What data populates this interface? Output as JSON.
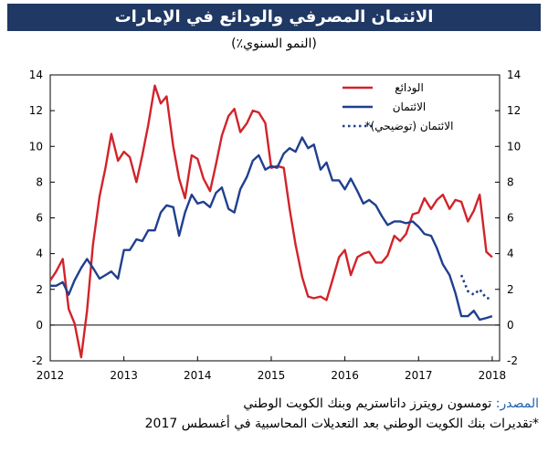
{
  "header": {
    "title": "الائتمان المصرفي والودائع في الإمارات",
    "subtitle": "(النمو السنوي٪)"
  },
  "footer": {
    "source_label": "المصدر:",
    "source_text": " تومسون رويترز داتاستريم وبنك الكويت الوطني",
    "note": "*تقديرات بنك الكويت الوطني بعد التعديلات المحاسبية في أغسطس 2017"
  },
  "colors": {
    "deposits": "#d2232a",
    "credit": "#203f8f",
    "axis": "#000000",
    "header_bg": "#1f3864"
  },
  "chart_data": {
    "type": "line",
    "title": "الائتمان المصرفي والودائع في الإمارات",
    "ylabel": "(النمو السنوي٪)",
    "xlim": [
      2012,
      2018.1
    ],
    "ylim": [
      -2,
      14
    ],
    "x_ticks": [
      "2012",
      "2013",
      "2014",
      "2015",
      "2016",
      "2017",
      "2018"
    ],
    "y_ticks": [
      "-2",
      "0",
      "2",
      "4",
      "6",
      "8",
      "10",
      "12",
      "14"
    ],
    "legend_position": "top-right",
    "series": [
      {
        "name": "الودائع",
        "style": "solid",
        "color": "#d2232a",
        "x": [
          2012.0,
          2012.08,
          2012.17,
          2012.25,
          2012.33,
          2012.42,
          2012.5,
          2012.58,
          2012.67,
          2012.75,
          2012.83,
          2012.92,
          2013.0,
          2013.08,
          2013.17,
          2013.25,
          2013.33,
          2013.42,
          2013.5,
          2013.58,
          2013.67,
          2013.75,
          2013.83,
          2013.92,
          2014.0,
          2014.08,
          2014.17,
          2014.25,
          2014.33,
          2014.42,
          2014.5,
          2014.58,
          2014.67,
          2014.75,
          2014.83,
          2014.92,
          2015.0,
          2015.08,
          2015.17,
          2015.25,
          2015.33,
          2015.42,
          2015.5,
          2015.58,
          2015.67,
          2015.75,
          2015.83,
          2015.92,
          2016.0,
          2016.08,
          2016.17,
          2016.25,
          2016.33,
          2016.42,
          2016.5,
          2016.58,
          2016.67,
          2016.75,
          2016.83,
          2016.92,
          2017.0,
          2017.08,
          2017.17,
          2017.25,
          2017.33,
          2017.42,
          2017.5,
          2017.58,
          2017.67,
          2017.75,
          2017.83,
          2017.92,
          2018.0
        ],
        "values": [
          2.5,
          3.0,
          3.7,
          0.9,
          0.1,
          -1.8,
          0.8,
          4.5,
          7.2,
          8.8,
          10.7,
          9.2,
          9.7,
          9.4,
          8.0,
          9.5,
          11.2,
          13.4,
          12.4,
          12.8,
          10.0,
          8.2,
          7.1,
          9.5,
          9.3,
          8.2,
          7.5,
          9.0,
          10.6,
          11.7,
          12.1,
          10.8,
          11.3,
          12.0,
          11.9,
          11.3,
          8.8,
          8.9,
          8.8,
          6.5,
          4.5,
          2.7,
          1.6,
          1.5,
          1.6,
          1.4,
          2.5,
          3.8,
          4.2,
          2.8,
          3.8,
          4.0,
          4.1,
          3.5,
          3.5,
          3.9,
          5.0,
          4.7,
          5.1,
          6.2,
          6.3,
          7.1,
          6.5,
          7.0,
          7.3,
          6.5,
          7.0,
          6.9,
          5.8,
          6.4,
          7.3,
          4.1,
          3.8
        ]
      },
      {
        "name": "الائتمان",
        "style": "solid",
        "color": "#203f8f",
        "x": [
          2012.0,
          2012.08,
          2012.17,
          2012.25,
          2012.33,
          2012.42,
          2012.5,
          2012.58,
          2012.67,
          2012.75,
          2012.83,
          2012.92,
          2013.0,
          2013.08,
          2013.17,
          2013.25,
          2013.33,
          2013.42,
          2013.5,
          2013.58,
          2013.67,
          2013.75,
          2013.83,
          2013.92,
          2014.0,
          2014.08,
          2014.17,
          2014.25,
          2014.33,
          2014.42,
          2014.5,
          2014.58,
          2014.67,
          2014.75,
          2014.83,
          2014.92,
          2015.0,
          2015.08,
          2015.17,
          2015.25,
          2015.33,
          2015.42,
          2015.5,
          2015.58,
          2015.67,
          2015.75,
          2015.83,
          2015.92,
          2016.0,
          2016.08,
          2016.17,
          2016.25,
          2016.33,
          2016.42,
          2016.5,
          2016.58,
          2016.67,
          2016.75,
          2016.83,
          2016.92,
          2017.0,
          2017.08,
          2017.17,
          2017.25,
          2017.33,
          2017.42,
          2017.5,
          2017.58,
          2017.67,
          2017.75,
          2017.83,
          2017.92,
          2018.0
        ],
        "values": [
          2.2,
          2.2,
          2.4,
          1.7,
          2.5,
          3.2,
          3.7,
          3.2,
          2.6,
          2.8,
          3.0,
          2.6,
          4.2,
          4.2,
          4.8,
          4.7,
          5.3,
          5.3,
          6.3,
          6.7,
          6.6,
          5.0,
          6.3,
          7.3,
          6.8,
          6.9,
          6.6,
          7.4,
          7.7,
          6.5,
          6.3,
          7.6,
          8.3,
          9.2,
          9.5,
          8.7,
          8.9,
          8.8,
          9.6,
          9.9,
          9.7,
          10.5,
          9.9,
          10.1,
          8.7,
          9.1,
          8.1,
          8.1,
          7.6,
          8.2,
          7.5,
          6.8,
          7.0,
          6.7,
          6.1,
          5.6,
          5.8,
          5.8,
          5.7,
          5.8,
          5.5,
          5.1,
          5.0,
          4.3,
          3.4,
          2.8,
          1.8,
          0.5,
          0.5,
          0.8,
          0.3,
          0.4,
          0.5
        ]
      },
      {
        "name": "الائتمان (توضيحي)*",
        "style": "dotted",
        "color": "#203f8f",
        "x": [
          2017.58,
          2017.67,
          2017.75,
          2017.83,
          2017.92,
          2018.0
        ],
        "values": [
          2.8,
          1.9,
          1.7,
          2.0,
          1.5,
          1.5
        ]
      }
    ]
  }
}
